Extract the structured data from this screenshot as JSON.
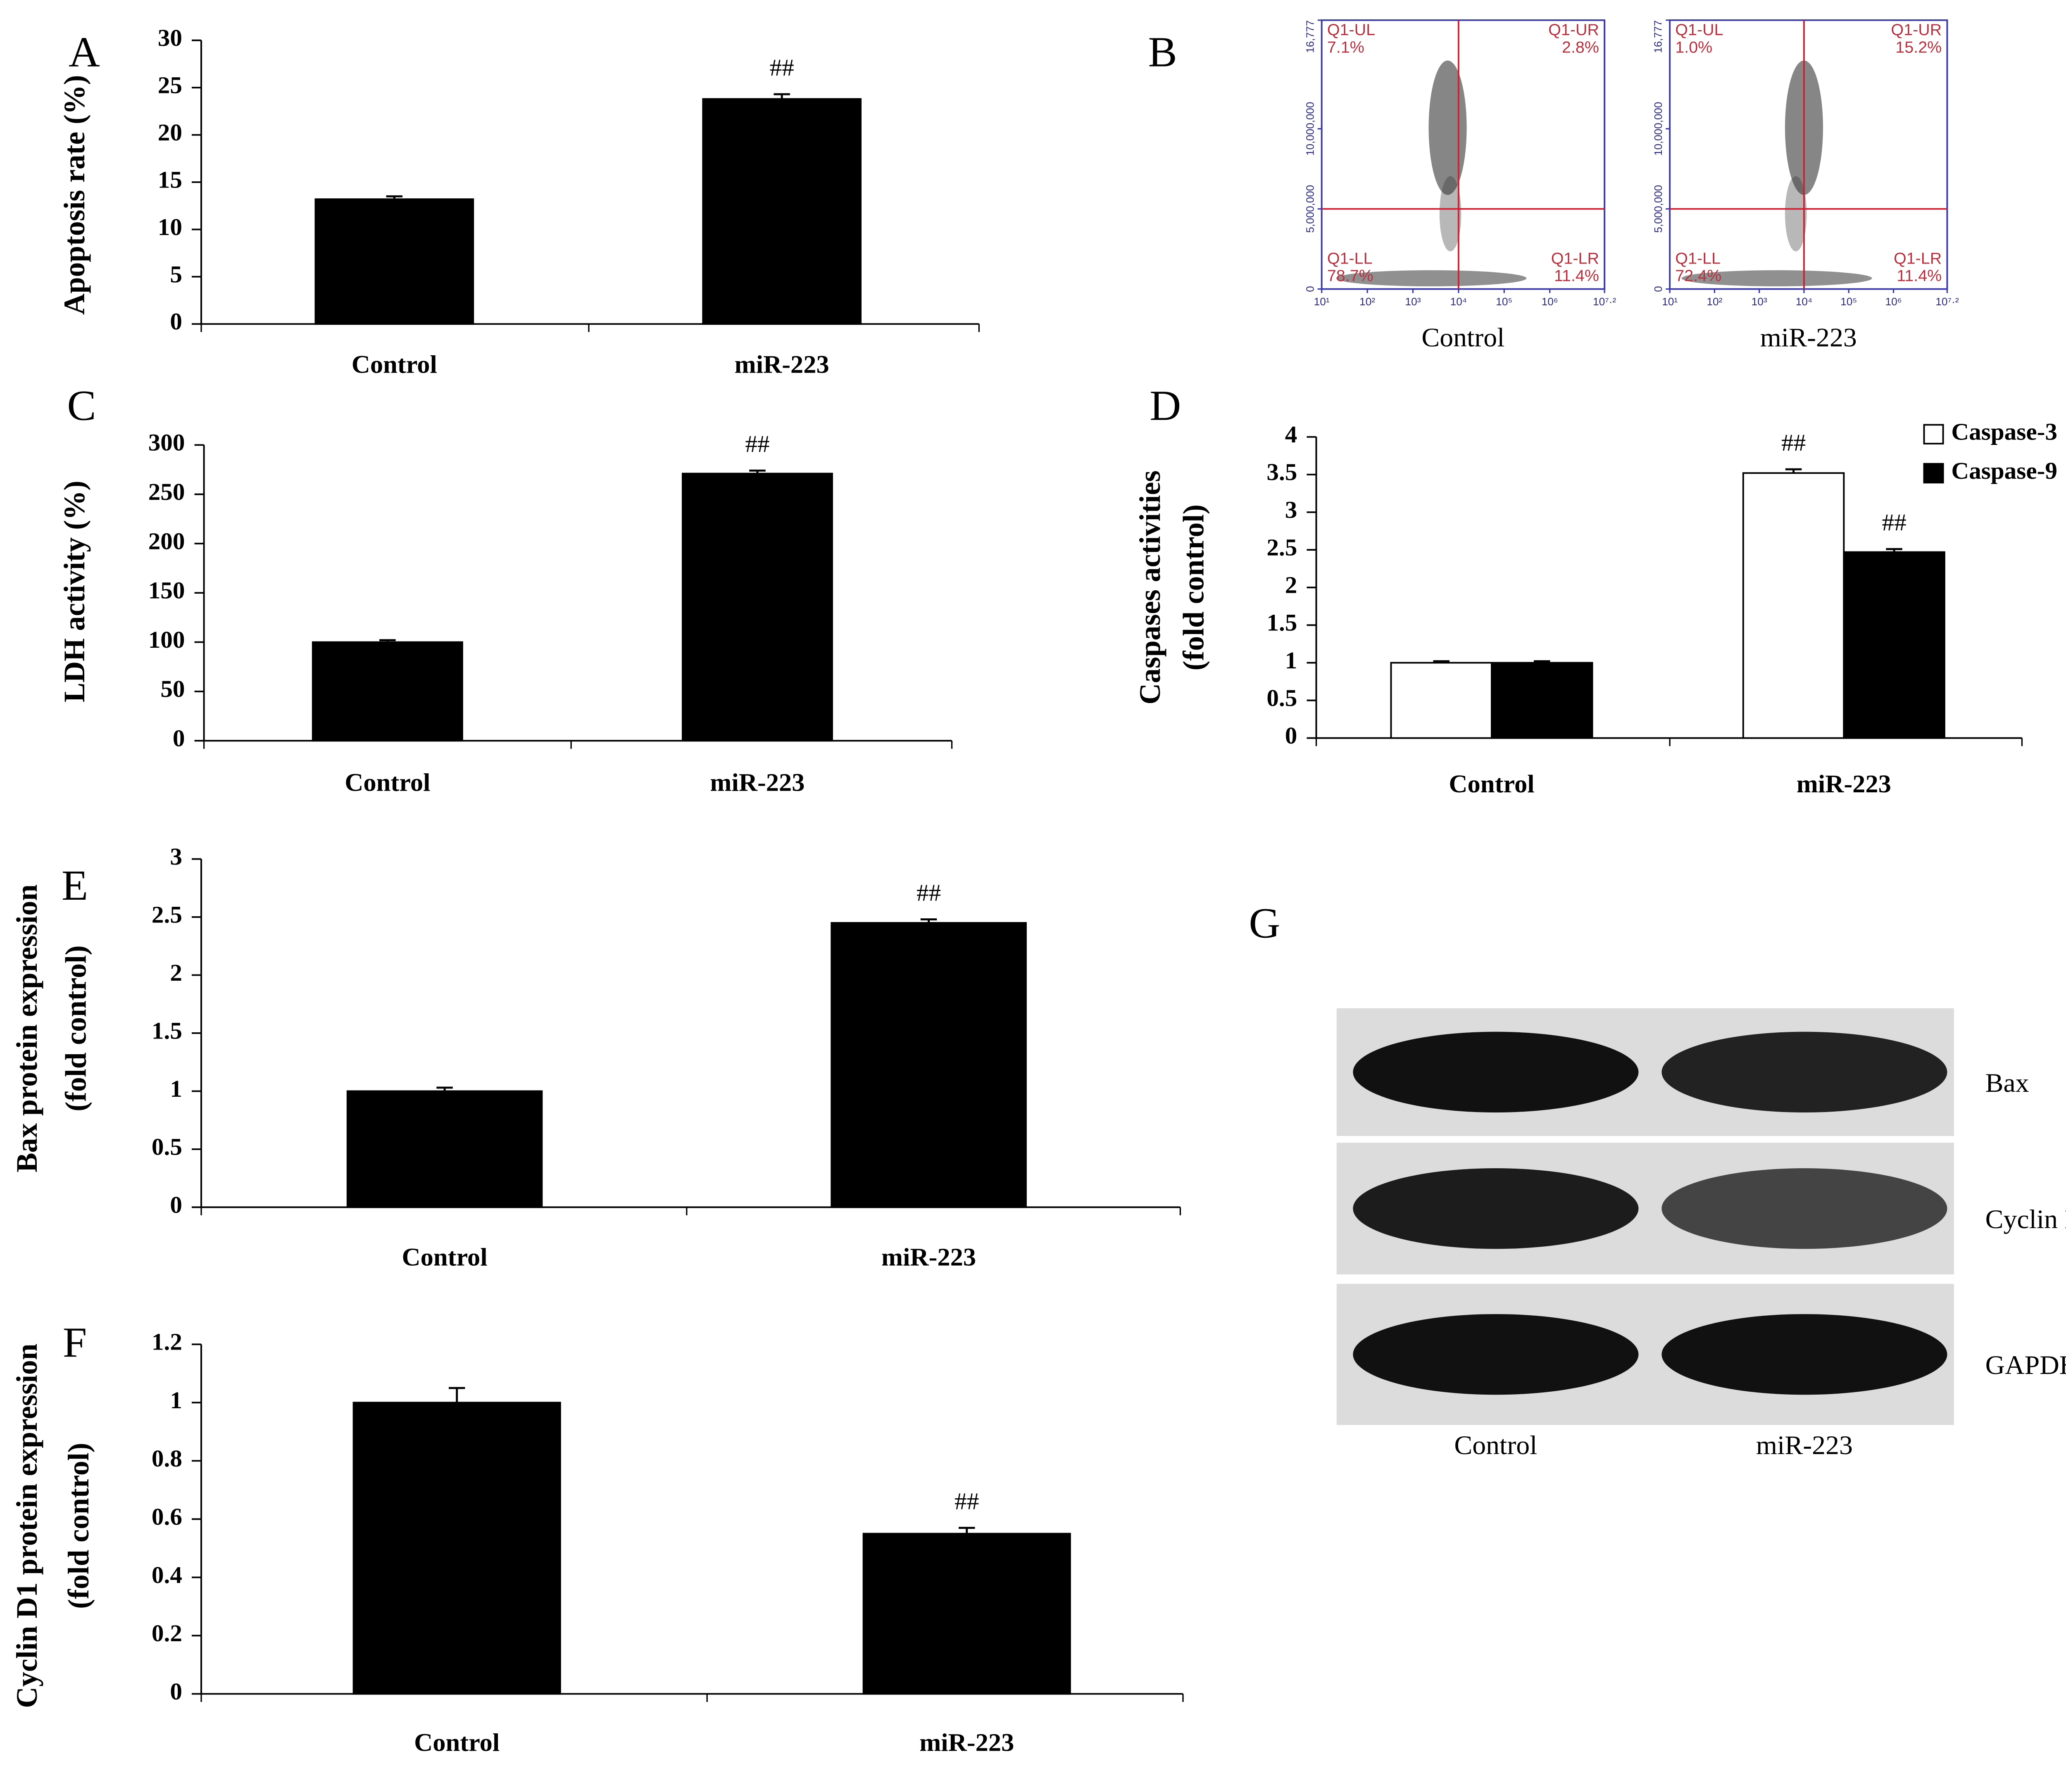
{
  "chart_data": [
    {
      "type": "bar",
      "panel_label": "A",
      "ylabel": [
        "Apoptosis rate (%)"
      ],
      "categories": [
        "Control",
        "miR-223"
      ],
      "values": [
        13.2,
        23.8
      ],
      "errors": [
        0.3,
        0.5
      ],
      "significance": [
        null,
        "##"
      ],
      "color": "#000000",
      "ylim": [
        0,
        30
      ],
      "yticks": [
        0,
        5,
        10,
        15,
        20,
        25,
        30
      ]
    },
    {
      "type": "flow",
      "panel_label": "B",
      "xscale": "log",
      "xlim": [
        10,
        15848932
      ],
      "ylim": [
        0,
        16777216
      ],
      "xticks": [
        {
          "value": 10,
          "label": "10¹"
        },
        {
          "value": 100,
          "label": "10²"
        },
        {
          "value": 1000,
          "label": "10³"
        },
        {
          "value": 10000,
          "label": "10⁴"
        },
        {
          "value": 100000,
          "label": "10⁵"
        },
        {
          "value": 1000000,
          "label": "10⁶"
        },
        {
          "value": 15848932,
          "label": "10⁷·²"
        }
      ],
      "yticks": [
        0,
        {
          "value": 5000000,
          "label": "5,000,000"
        },
        {
          "value": 10000000,
          "label": "10,000,000"
        },
        {
          "value": 16777216,
          "label": "16,777"
        }
      ],
      "gates": {
        "x": 10000,
        "y": 5000000
      },
      "gate_color": "#cc2233",
      "frame_color": "#3a3aa8",
      "plots": [
        {
          "label": "Control",
          "quadrants": [
            {
              "name": "Q1-UL",
              "value": 7.1,
              "value_label": "7.1%"
            },
            {
              "name": "Q1-UR",
              "value": 2.8,
              "value_label": "2.8%"
            },
            {
              "name": "Q1-LL",
              "value": 78.7,
              "value_label": "78.7%"
            },
            {
              "name": "Q1-LR",
              "value": 11.4,
              "value_label": "11.4%"
            }
          ]
        },
        {
          "label": "miR-223",
          "quadrants": [
            {
              "name": "Q1-UL",
              "value": 1.0,
              "value_label": "1.0%"
            },
            {
              "name": "Q1-UR",
              "value": 15.2,
              "value_label": "15.2%"
            },
            {
              "name": "Q1-LL",
              "value": 72.4,
              "value_label": "72.4%"
            },
            {
              "name": "Q1-LR",
              "value": 11.4,
              "value_label": "11.4%"
            }
          ]
        }
      ]
    },
    {
      "type": "bar",
      "panel_label": "C",
      "ylabel": [
        "LDH activity (%)"
      ],
      "categories": [
        "Control",
        "miR-223"
      ],
      "values": [
        100,
        271
      ],
      "errors": [
        2,
        3
      ],
      "significance": [
        null,
        "##"
      ],
      "color": "#000000",
      "ylim": [
        0,
        300
      ],
      "yticks": [
        0,
        50,
        100,
        150,
        200,
        250,
        300
      ]
    },
    {
      "type": "bar",
      "panel_label": "D",
      "ylabel": [
        "Caspases activities",
        "(fold control)"
      ],
      "categories": [
        "Control",
        "miR-223"
      ],
      "series": [
        {
          "name": "Caspase-3",
          "color": "#ffffff",
          "values": [
            1.0,
            3.52
          ],
          "errors": [
            0.02,
            0.05
          ],
          "significance": [
            null,
            "##"
          ]
        },
        {
          "name": "Caspase-9",
          "color": "#000000",
          "values": [
            1.0,
            2.47
          ],
          "errors": [
            0.02,
            0.04
          ],
          "significance": [
            null,
            "##"
          ]
        }
      ],
      "legend": "top-right",
      "ylim": [
        0,
        4
      ],
      "yticks": [
        0,
        0.5,
        1,
        1.5,
        2,
        2.5,
        3,
        3.5,
        4
      ]
    },
    {
      "type": "bar",
      "panel_label": "E",
      "ylabel": [
        "Bax protein expression",
        "(fold control)"
      ],
      "categories": [
        "Control",
        "miR-223"
      ],
      "values": [
        1.0,
        2.45
      ],
      "errors": [
        0.03,
        0.03
      ],
      "significance": [
        null,
        "##"
      ],
      "color": "#000000",
      "ylim": [
        0,
        3
      ],
      "yticks": [
        0,
        0.5,
        1,
        1.5,
        2,
        2.5,
        3
      ]
    },
    {
      "type": "bar",
      "panel_label": "F",
      "ylabel": [
        "Cyclin D1 protein expression",
        "(fold control)"
      ],
      "categories": [
        "Control",
        "miR-223"
      ],
      "values": [
        1.0,
        0.55
      ],
      "errors": [
        0.05,
        0.02
      ],
      "significance": [
        null,
        "##"
      ],
      "color": "#000000",
      "ylim": [
        0,
        1.2
      ],
      "yticks": [
        0,
        0.2,
        0.4,
        0.6,
        0.8,
        1,
        1.2
      ]
    },
    {
      "type": "blot",
      "panel_label": "G",
      "bands": [
        "Bax",
        "Cyclin D",
        "GAPDH"
      ],
      "lanes": [
        "Control",
        "miR-223"
      ]
    }
  ]
}
